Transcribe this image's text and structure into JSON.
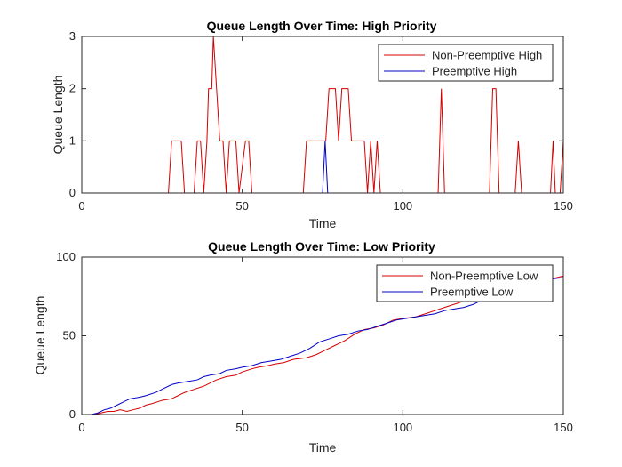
{
  "chart_data": [
    {
      "type": "line",
      "title": "Queue Length Over Time: High Priority",
      "xlabel": "Time",
      "ylabel": "Queue Length",
      "xlim": [
        0,
        150
      ],
      "ylim": [
        0,
        3
      ],
      "xticks": [
        "0",
        "50",
        "100",
        "150"
      ],
      "yticks": [
        "0",
        "1",
        "2",
        "3"
      ],
      "legend_position": "top-right",
      "series": [
        {
          "name": "Non-Preemptive High",
          "color": "#d40000",
          "points": [
            [
              0,
              0
            ],
            [
              27,
              0
            ],
            [
              28,
              1
            ],
            [
              31,
              1
            ],
            [
              32,
              0
            ],
            [
              35,
              0
            ],
            [
              36,
              1
            ],
            [
              37,
              1
            ],
            [
              38,
              0
            ],
            [
              39,
              1
            ],
            [
              39.5,
              2
            ],
            [
              40.5,
              2
            ],
            [
              41,
              3
            ],
            [
              43,
              1
            ],
            [
              44,
              1
            ],
            [
              45,
              0
            ],
            [
              46,
              1
            ],
            [
              48,
              1
            ],
            [
              49,
              0
            ],
            [
              51,
              1
            ],
            [
              52,
              1
            ],
            [
              53,
              0
            ],
            [
              69,
              0
            ],
            [
              70,
              1
            ],
            [
              76,
              1
            ],
            [
              77,
              2
            ],
            [
              79,
              2
            ],
            [
              80,
              1
            ],
            [
              81,
              2
            ],
            [
              83,
              2
            ],
            [
              84,
              1
            ],
            [
              88,
              1
            ],
            [
              89,
              0
            ],
            [
              90,
              1
            ],
            [
              91,
              0
            ],
            [
              92,
              1
            ],
            [
              93,
              0
            ],
            [
              111,
              0
            ],
            [
              112,
              2
            ],
            [
              113,
              0
            ],
            [
              127,
              0
            ],
            [
              128,
              2
            ],
            [
              129,
              2
            ],
            [
              130,
              0
            ],
            [
              135,
              0
            ],
            [
              136,
              1
            ],
            [
              137,
              0
            ],
            [
              146,
              0
            ],
            [
              146.8,
              1
            ],
            [
              147.5,
              0
            ],
            [
              149,
              0
            ],
            [
              150,
              1
            ]
          ]
        },
        {
          "name": "Preemptive High",
          "color": "#0000c8",
          "points": [
            [
              0,
              0
            ],
            [
              75,
              0
            ],
            [
              75.8,
              1
            ],
            [
              76.6,
              0
            ],
            [
              150,
              0
            ]
          ]
        }
      ]
    },
    {
      "type": "line",
      "title": "Queue Length Over Time: Low Priority",
      "xlabel": "Time",
      "ylabel": "Queue Length",
      "xlim": [
        0,
        150
      ],
      "ylim": [
        0,
        100
      ],
      "xticks": [
        "0",
        "50",
        "100",
        "150"
      ],
      "yticks": [
        "0",
        "50",
        "100"
      ],
      "legend_position": "top-right",
      "series": [
        {
          "name": "Non-Preemptive Low",
          "color": "#d40000",
          "points": [
            [
              0,
              0
            ],
            [
              4,
              0
            ],
            [
              6,
              1
            ],
            [
              8,
              2
            ],
            [
              10,
              2
            ],
            [
              12,
              3
            ],
            [
              14,
              2
            ],
            [
              16,
              3
            ],
            [
              18,
              4
            ],
            [
              20,
              6
            ],
            [
              22,
              7
            ],
            [
              25,
              9
            ],
            [
              28,
              10
            ],
            [
              30,
              12
            ],
            [
              32,
              14
            ],
            [
              35,
              16
            ],
            [
              38,
              18
            ],
            [
              40,
              20
            ],
            [
              42,
              22
            ],
            [
              45,
              24
            ],
            [
              48,
              25
            ],
            [
              50,
              27
            ],
            [
              53,
              29
            ],
            [
              55,
              30
            ],
            [
              58,
              31
            ],
            [
              60,
              32
            ],
            [
              63,
              33
            ],
            [
              66,
              35
            ],
            [
              70,
              36
            ],
            [
              73,
              38
            ],
            [
              76,
              41
            ],
            [
              79,
              44
            ],
            [
              82,
              47
            ],
            [
              85,
              51
            ],
            [
              88,
              54
            ],
            [
              91,
              55
            ],
            [
              94,
              57
            ],
            [
              97,
              60
            ],
            [
              100,
              61
            ],
            [
              104,
              62
            ],
            [
              107,
              64
            ],
            [
              110,
              66
            ],
            [
              113,
              68
            ],
            [
              116,
              70
            ],
            [
              119,
              72
            ],
            [
              122,
              74
            ],
            [
              125,
              77
            ],
            [
              128,
              79
            ],
            [
              131,
              80
            ],
            [
              134,
              81
            ],
            [
              137,
              83
            ],
            [
              140,
              84
            ],
            [
              143,
              85
            ],
            [
              146,
              86
            ],
            [
              150,
              88
            ]
          ]
        },
        {
          "name": "Preemptive Low",
          "color": "#0000c8",
          "points": [
            [
              0,
              0
            ],
            [
              3,
              0
            ],
            [
              5,
              1
            ],
            [
              7,
              3
            ],
            [
              9,
              4
            ],
            [
              11,
              6
            ],
            [
              13,
              8
            ],
            [
              15,
              10
            ],
            [
              18,
              11
            ],
            [
              20,
              12
            ],
            [
              23,
              14
            ],
            [
              25,
              16
            ],
            [
              28,
              19
            ],
            [
              30,
              20
            ],
            [
              33,
              21
            ],
            [
              36,
              22
            ],
            [
              38,
              24
            ],
            [
              40,
              25
            ],
            [
              43,
              26
            ],
            [
              45,
              28
            ],
            [
              48,
              29
            ],
            [
              50,
              30
            ],
            [
              53,
              31
            ],
            [
              56,
              33
            ],
            [
              59,
              34
            ],
            [
              62,
              35
            ],
            [
              65,
              37
            ],
            [
              68,
              39
            ],
            [
              71,
              42
            ],
            [
              74,
              46
            ],
            [
              77,
              48
            ],
            [
              80,
              50
            ],
            [
              83,
              51
            ],
            [
              86,
              53
            ],
            [
              89,
              54
            ],
            [
              92,
              56
            ],
            [
              95,
              58
            ],
            [
              98,
              60
            ],
            [
              101,
              61
            ],
            [
              104,
              62
            ],
            [
              107,
              63
            ],
            [
              110,
              64
            ],
            [
              113,
              66
            ],
            [
              116,
              67
            ],
            [
              119,
              68
            ],
            [
              122,
              70
            ],
            [
              125,
              73
            ],
            [
              128,
              76
            ],
            [
              131,
              78
            ],
            [
              134,
              80
            ],
            [
              137,
              82
            ],
            [
              140,
              83
            ],
            [
              143,
              84
            ],
            [
              146,
              86
            ],
            [
              150,
              87
            ]
          ]
        }
      ]
    }
  ]
}
